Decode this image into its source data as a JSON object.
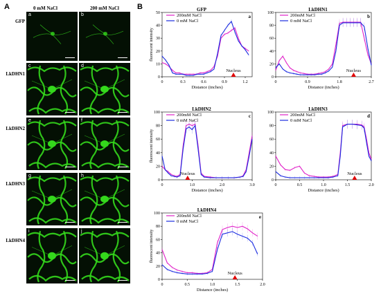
{
  "figure": {
    "panel_a_label": "A",
    "panel_b_label": "B",
    "col_heads": [
      "0 mM  NaCl",
      "200 mM  NaCl"
    ],
    "rows": [
      {
        "label": "GFP",
        "letters": [
          "a",
          "b"
        ],
        "kind": "gfp"
      },
      {
        "label": "LkDHN1",
        "letters": [
          "c",
          "d"
        ],
        "kind": "cell"
      },
      {
        "label": "LkDHN2",
        "letters": [
          "e",
          "f"
        ],
        "kind": "cell"
      },
      {
        "label": "LkDHN3",
        "letters": [
          "g",
          "h"
        ],
        "kind": "cell"
      },
      {
        "label": "LkDHN4",
        "letters": [
          "i",
          "j"
        ],
        "kind": "cell"
      }
    ],
    "colors": {
      "salt": "#e020c8",
      "control": "#1a2be0",
      "marker": "#e00000",
      "gfp": "#34d81c"
    }
  },
  "chart_data": [
    {
      "type": "line",
      "title": "GFP",
      "letter": "a",
      "xlabel": "Distance (inches)",
      "ylabel": "fluorescent intensity",
      "xlim": [
        0,
        1.3
      ],
      "ylim": [
        0,
        50
      ],
      "xticks": [
        0,
        0.3,
        0.6,
        0.9,
        1.2
      ],
      "xtick_labels": [
        "0",
        "0.3",
        "0.6",
        "0.9",
        "1.2"
      ],
      "yticks": [
        0,
        10,
        20,
        30,
        40,
        50
      ],
      "annotation": {
        "text": "Nucleus",
        "x": 1.03
      },
      "legend": [
        "200mM  NaCl",
        "0 mM   NaCl"
      ],
      "x": [
        0,
        0.05,
        0.1,
        0.15,
        0.2,
        0.25,
        0.3,
        0.35,
        0.4,
        0.45,
        0.5,
        0.55,
        0.6,
        0.65,
        0.7,
        0.75,
        0.8,
        0.85,
        0.9,
        0.95,
        1.0,
        1.05,
        1.1,
        1.15,
        1.2,
        1.25
      ],
      "series": [
        {
          "name": "200mM  NaCl",
          "values": [
            11,
            10,
            8,
            5,
            3,
            3,
            2,
            2,
            2,
            2,
            2,
            3,
            3,
            4,
            5,
            8,
            16,
            30,
            33,
            34,
            36,
            38,
            30,
            24,
            22,
            20
          ]
        },
        {
          "name": "0 mM   NaCl",
          "values": [
            16,
            13,
            9,
            3,
            2,
            2,
            2,
            1,
            1,
            1,
            2,
            2,
            2,
            3,
            4,
            6,
            18,
            32,
            36,
            40,
            43,
            35,
            28,
            24,
            21,
            17
          ]
        }
      ]
    },
    {
      "type": "line",
      "title": "LkDHN1",
      "letter": "b",
      "xlabel": "Distance (inches)",
      "ylabel": "",
      "xlim": [
        0,
        2.7
      ],
      "ylim": [
        0,
        100
      ],
      "xticks": [
        0,
        0.9,
        1.8,
        2.7
      ],
      "xtick_labels": [
        "0",
        "0.9",
        "1.8",
        "2.7"
      ],
      "yticks": [
        0,
        20,
        40,
        60,
        80,
        100
      ],
      "annotation": {
        "text": "Nucleus",
        "x": 2.2
      },
      "legend": [
        "200mM  NaCl",
        "0 mM   NaCl"
      ],
      "x": [
        0,
        0.1,
        0.2,
        0.3,
        0.4,
        0.5,
        0.6,
        0.7,
        0.8,
        0.9,
        1.0,
        1.1,
        1.2,
        1.3,
        1.4,
        1.5,
        1.6,
        1.7,
        1.8,
        1.9,
        2.0,
        2.1,
        2.2,
        2.3,
        2.4,
        2.5,
        2.6,
        2.7
      ],
      "series": [
        {
          "name": "200mM  NaCl",
          "values": [
            10,
            25,
            32,
            22,
            14,
            10,
            8,
            6,
            5,
            4,
            4,
            4,
            5,
            6,
            8,
            12,
            20,
            50,
            83,
            85,
            85,
            85,
            85,
            85,
            85,
            60,
            35,
            20
          ]
        },
        {
          "name": "0 mM   NaCl",
          "values": [
            14,
            20,
            12,
            8,
            6,
            5,
            4,
            3,
            3,
            3,
            3,
            3,
            4,
            4,
            6,
            9,
            15,
            40,
            80,
            84,
            84,
            84,
            84,
            84,
            84,
            78,
            45,
            18
          ]
        }
      ]
    },
    {
      "type": "line",
      "title": "LkDHN2",
      "letter": "c",
      "xlabel": "Distance (inches)",
      "ylabel": "fluorescent intensity",
      "xlim": [
        0,
        3.0
      ],
      "ylim": [
        0,
        100
      ],
      "xticks": [
        0,
        1.0,
        2.0,
        3.0
      ],
      "xtick_labels": [
        "0",
        "1.0",
        "2.0",
        "3.0"
      ],
      "yticks": [
        0,
        20,
        40,
        60,
        80,
        100
      ],
      "annotation": {
        "text": "Nucleus",
        "x": 0.85
      },
      "legend": [
        "200mM  NaCl",
        "0 mM   NaCl"
      ],
      "x": [
        0,
        0.1,
        0.2,
        0.3,
        0.4,
        0.5,
        0.6,
        0.7,
        0.8,
        0.9,
        1.0,
        1.1,
        1.2,
        1.3,
        1.4,
        1.6,
        1.8,
        2.0,
        2.2,
        2.4,
        2.6,
        2.7,
        2.8,
        2.9,
        3.0
      ],
      "series": [
        {
          "name": "200mM  NaCl",
          "values": [
            20,
            15,
            12,
            8,
            6,
            5,
            8,
            50,
            80,
            82,
            80,
            82,
            50,
            10,
            5,
            4,
            3,
            3,
            3,
            3,
            4,
            6,
            15,
            40,
            65
          ]
        },
        {
          "name": "0 mM   NaCl",
          "values": [
            35,
            15,
            10,
            6,
            5,
            4,
            6,
            45,
            75,
            78,
            74,
            80,
            45,
            8,
            4,
            3,
            3,
            3,
            3,
            3,
            4,
            5,
            12,
            35,
            60
          ]
        }
      ]
    },
    {
      "type": "line",
      "title": "LkDHN3",
      "letter": "d",
      "xlabel": "Distance (inches)",
      "ylabel": "",
      "xlim": [
        0,
        2.0
      ],
      "ylim": [
        0,
        100
      ],
      "xticks": [
        0,
        0.5,
        1.0,
        1.5,
        2.0
      ],
      "xtick_labels": [
        "0",
        "0.5",
        "1.0",
        "1.5",
        "2.0"
      ],
      "yticks": [
        0,
        20,
        40,
        60,
        80,
        100
      ],
      "annotation": {
        "text": "Nucleus",
        "x": 1.65
      },
      "legend": [
        "200mM  NaCl",
        "0 mM   NaCl"
      ],
      "x": [
        0,
        0.1,
        0.2,
        0.3,
        0.4,
        0.5,
        0.6,
        0.7,
        0.8,
        0.9,
        1.0,
        1.1,
        1.2,
        1.3,
        1.35,
        1.4,
        1.5,
        1.6,
        1.7,
        1.8,
        1.85,
        1.9,
        1.95,
        2.0
      ],
      "series": [
        {
          "name": "200mM  NaCl",
          "values": [
            35,
            22,
            15,
            14,
            18,
            20,
            10,
            6,
            5,
            4,
            4,
            4,
            5,
            8,
            40,
            80,
            82,
            82,
            82,
            81,
            78,
            60,
            40,
            30
          ]
        },
        {
          "name": "0 mM   NaCl",
          "values": [
            12,
            6,
            4,
            3,
            3,
            3,
            3,
            3,
            3,
            3,
            3,
            3,
            4,
            6,
            35,
            78,
            82,
            82,
            81,
            80,
            76,
            55,
            35,
            28
          ]
        }
      ]
    },
    {
      "type": "line",
      "title": "LkDHN4",
      "letter": "e",
      "xlabel": "Distance (inches)",
      "ylabel": "fluorescent intensity",
      "xlim": [
        0,
        2.0
      ],
      "ylim": [
        0,
        100
      ],
      "xticks": [
        0,
        0.5,
        1.0,
        1.5,
        2.0
      ],
      "xtick_labels": [
        "0",
        "0.5",
        "1.0",
        "1.5",
        "2.0"
      ],
      "yticks": [
        0,
        20,
        40,
        60,
        80,
        100
      ],
      "annotation": {
        "text": "Nucleus",
        "x": 1.45
      },
      "legend": [
        "200mM  NaCl",
        "0 mM   NaCl"
      ],
      "x": [
        0,
        0.1,
        0.2,
        0.3,
        0.4,
        0.5,
        0.6,
        0.7,
        0.8,
        0.9,
        1.0,
        1.1,
        1.2,
        1.3,
        1.4,
        1.5,
        1.6,
        1.7,
        1.8,
        1.9
      ],
      "series": [
        {
          "name": "200mM  NaCl",
          "values": [
            45,
            25,
            18,
            14,
            12,
            10,
            10,
            9,
            9,
            10,
            15,
            55,
            75,
            78,
            80,
            78,
            80,
            76,
            70,
            65
          ]
        },
        {
          "name": "0 mM   NaCl",
          "values": [
            22,
            15,
            12,
            10,
            9,
            8,
            8,
            8,
            8,
            9,
            12,
            45,
            68,
            70,
            72,
            68,
            65,
            62,
            55,
            38
          ]
        }
      ]
    }
  ]
}
